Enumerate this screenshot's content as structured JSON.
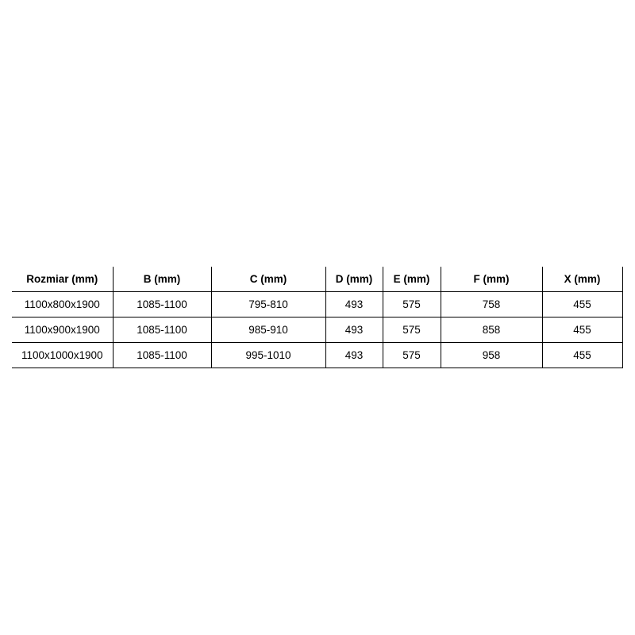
{
  "table": {
    "headers": [
      "Rozmiar (mm)",
      "B (mm)",
      "C (mm)",
      "D (mm)",
      "E (mm)",
      "F (mm)",
      "X (mm)"
    ],
    "rows": [
      [
        "1100x800x1900",
        "1085-1100",
        "795-810",
        "493",
        "575",
        "758",
        "455"
      ],
      [
        "1100x900x1900",
        "1085-1100",
        "985-910",
        "493",
        "575",
        "858",
        "455"
      ],
      [
        "1100x1000x1900",
        "1085-1100",
        "995-1010",
        "493",
        "575",
        "958",
        "455"
      ]
    ]
  }
}
